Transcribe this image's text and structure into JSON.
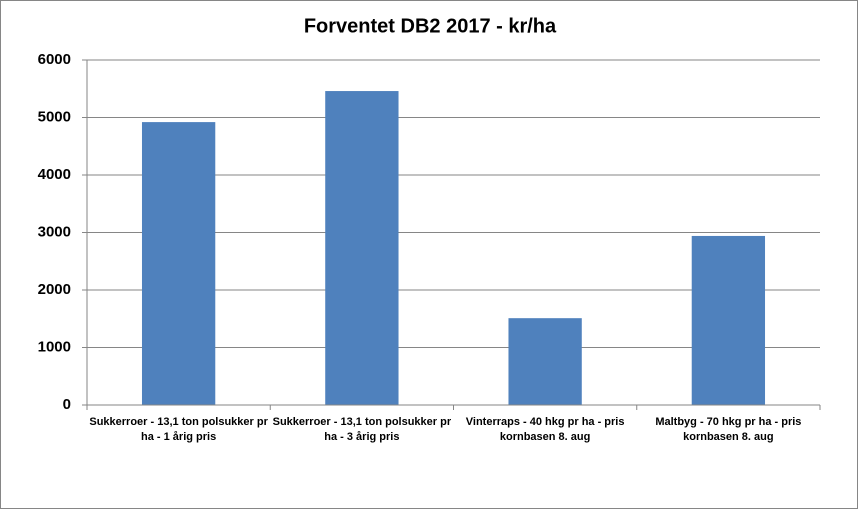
{
  "chart_data": {
    "type": "bar",
    "title": "Forventet DB2 2017 - kr/ha",
    "categories": [
      "Sukkerroer - 13,1 ton polsukker pr ha - 1 årig pris",
      "Sukkerroer - 13,1 ton polsukker pr ha - 3 årig pris",
      "Vinterraps - 40 hkg pr ha - pris kornbasen 8. aug",
      "Maltbyg - 70 hkg pr ha - pris kornbasen 8. aug"
    ],
    "values": [
      4920,
      5460,
      1510,
      2940
    ],
    "color": "#4f81bd",
    "ylim": [
      0,
      6000
    ],
    "yticks": [
      0,
      1000,
      2000,
      3000,
      4000,
      5000,
      6000
    ],
    "grid": true
  }
}
